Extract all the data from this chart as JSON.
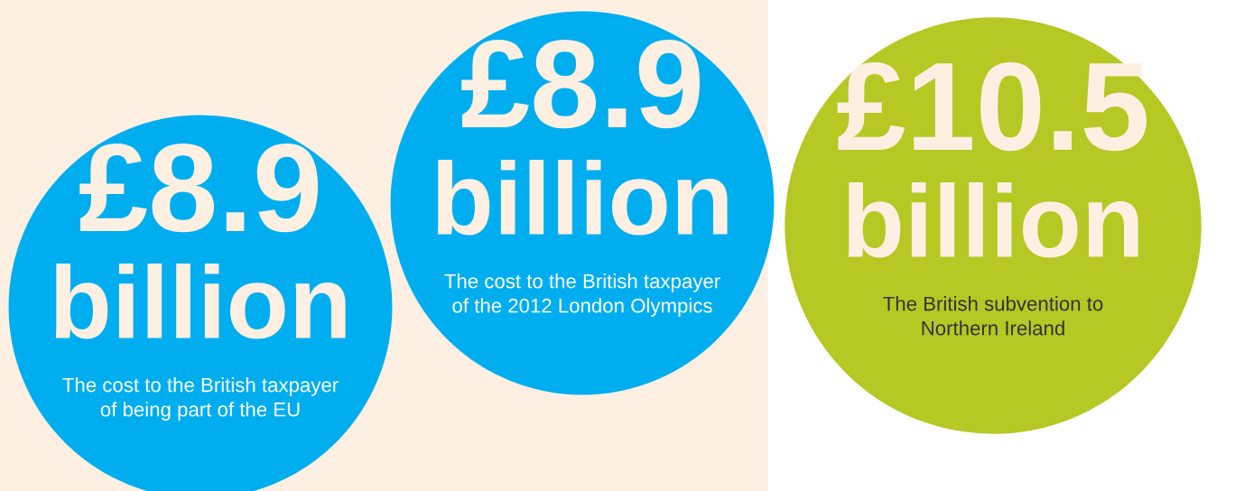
{
  "chart_data": {
    "type": "other",
    "categories": [
      "The cost to the British taxpayer\nof being part of the EU",
      "The cost to the British taxpayer\nof the 2012 London Olympics",
      "The British subvention to\nNorthern Ireland"
    ],
    "values": [
      8900000000,
      8900000000,
      10500000000
    ],
    "value_labels": [
      "£8.9\nbillion",
      "£8.9\nbillion",
      "£10.5\nbillion"
    ],
    "colors": [
      "#00aeef",
      "#00aeef",
      "#b5c823"
    ]
  }
}
